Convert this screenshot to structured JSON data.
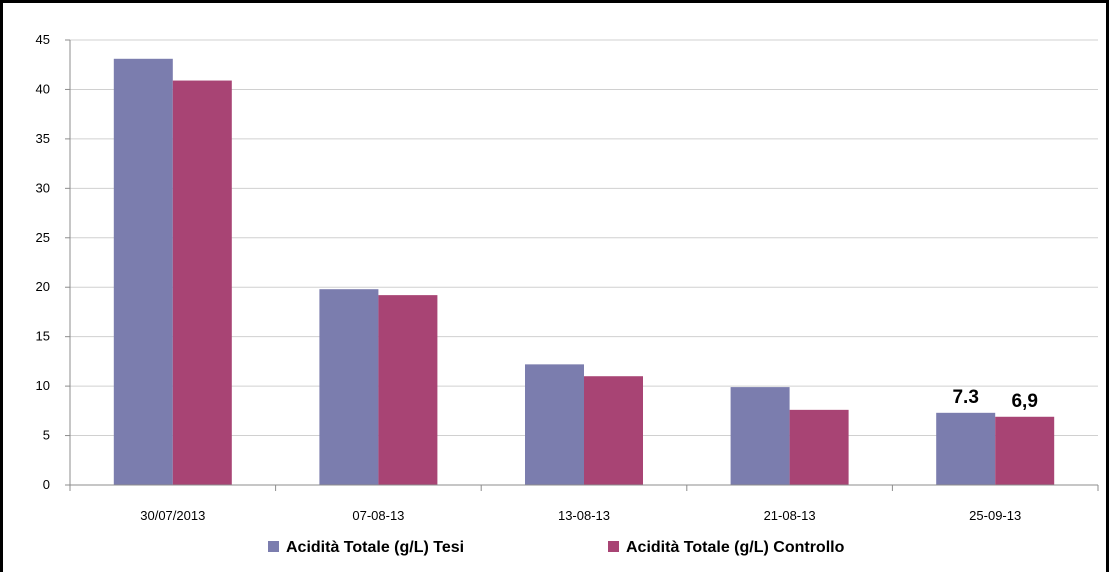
{
  "chart_data": {
    "type": "bar",
    "title": "",
    "xlabel": "",
    "ylabel": "",
    "ylim": [
      0,
      45
    ],
    "ytick_step": 5,
    "yticks": [
      "0",
      "5",
      "10",
      "15",
      "20",
      "25",
      "30",
      "35",
      "40",
      "45"
    ],
    "grid": true,
    "legend_position": "bottom",
    "categories": [
      "30/07/2013",
      "07-08-13",
      "13-08-13",
      "21-08-13",
      "25-09-13"
    ],
    "series": [
      {
        "name": "Acidità Totale (g/L) Tesi",
        "color": "#7B7DAE",
        "values": [
          43.1,
          19.8,
          12.2,
          9.9,
          7.3
        ],
        "data_labels": [
          "",
          "",
          "",
          "",
          "7.3"
        ]
      },
      {
        "name": "Acidità Totale (g/L) Controllo",
        "color": "#A84474",
        "values": [
          40.9,
          19.2,
          11.0,
          7.6,
          6.9
        ],
        "data_labels": [
          "",
          "",
          "",
          "",
          "6,9"
        ]
      }
    ]
  }
}
